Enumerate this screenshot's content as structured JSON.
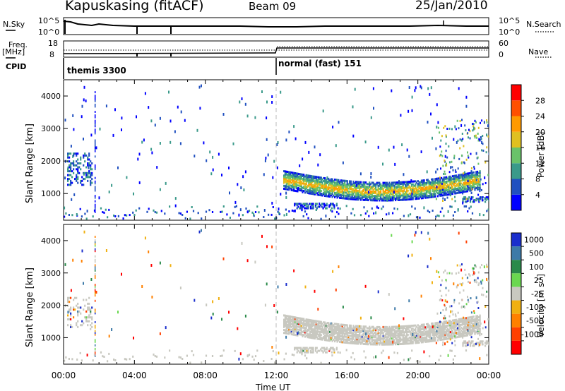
{
  "header": {
    "station": "Kapuskasing (fitACF)",
    "beam": "Beam 09",
    "date": "25/Jan/2010"
  },
  "top_panels": {
    "nsky_label": "N.Sky",
    "nsky_ticks": [
      "10^5",
      "10^0"
    ],
    "nsearch_label": "N.Search",
    "freq_label": "Freq.",
    "freq_unit": "[MHz]",
    "freq_ticks": [
      "18",
      "8"
    ],
    "nave_label": "Nave",
    "nave_ticks": [
      "60",
      "0"
    ],
    "cpid_label": "CPID",
    "cpid_segments": [
      "themis 3300",
      "normal (fast) 151"
    ]
  },
  "chart_data": [
    {
      "type": "heatmap",
      "name": "power",
      "ylabel": "Slant Range [km]",
      "xlabel": "",
      "xlim": [
        "00:00",
        "24:00"
      ],
      "ylim": [
        180,
        4500
      ],
      "y_ticks": [
        "1000",
        "2000",
        "3000",
        "4000"
      ],
      "colorbar_label": "Power [dB]",
      "colorbar_ticks": [
        "4",
        "8",
        "12",
        "16",
        "20",
        "24",
        "28"
      ],
      "colorbar_range": [
        0,
        32
      ],
      "colorbar_colors": [
        "#0000ff",
        "#2050c0",
        "#3a9a8a",
        "#6ac26a",
        "#e0c020",
        "#ff9a00",
        "#ff5000",
        "#ff0000"
      ],
      "features": [
        {
          "label": "main echo band",
          "start_hour": 12.4,
          "end_hour": 23.5,
          "range_start_km": 1500,
          "range_end_km": 1100
        },
        {
          "label": "lower echo band",
          "start_hour": 13.0,
          "end_hour": 15.5,
          "range_km": 650
        },
        {
          "label": "late echoes",
          "start_hour": 22.5,
          "end_hour": 24.0,
          "range_km": 850
        }
      ]
    },
    {
      "type": "heatmap",
      "name": "velocity",
      "ylabel": "Slant Range [km]",
      "xlabel": "Time UT",
      "xlim": [
        "00:00",
        "24:00"
      ],
      "ylim": [
        180,
        4500
      ],
      "x_ticks": [
        "00:00",
        "04:00",
        "08:00",
        "12:00",
        "16:00",
        "20:00",
        "00:00"
      ],
      "y_ticks": [
        "1000",
        "2000",
        "3000",
        "4000"
      ],
      "colorbar_label": "Velocity [m s",
      "colorbar_label_exponent": "-1",
      "colorbar_label_end": "]",
      "colorbar_ticks": [
        "1000",
        "500",
        "100",
        "25",
        "-25",
        "-100",
        "-500",
        "-1000"
      ],
      "colorbar_colors": [
        "#1a2ecc",
        "#3d7aa8",
        "#2a8a4a",
        "#6ad850",
        "#c8c8c0",
        "#f0b010",
        "#ff8000",
        "#ff4000",
        "#ff0000"
      ],
      "features": [
        {
          "label": "ground scatter band",
          "start_hour": 12.4,
          "end_hour": 23.5,
          "range_start_km": 1500,
          "range_end_km": 1200
        }
      ]
    }
  ],
  "colors": {
    "axis": "#000000",
    "divider": "#bbbbbb",
    "ground_scatter": "#c8c8c0"
  }
}
